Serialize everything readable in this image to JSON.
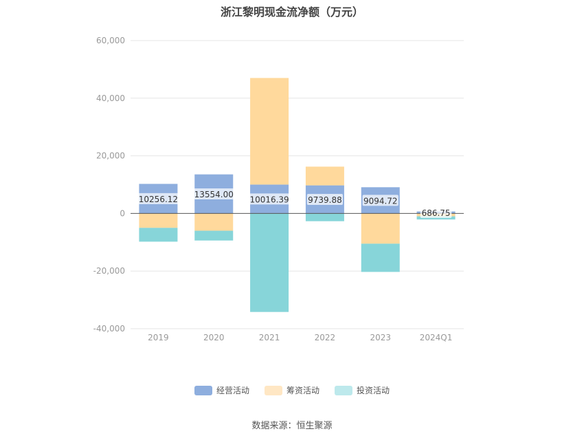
{
  "chart_data": {
    "type": "bar",
    "stacked": true,
    "title": "浙江黎明现金流净额（万元）",
    "categories": [
      "2019",
      "2020",
      "2021",
      "2022",
      "2023",
      "2024Q1"
    ],
    "ylim": [
      -40000,
      60000
    ],
    "yticks": [
      60000,
      40000,
      20000,
      0,
      -20000,
      -40000
    ],
    "ytick_labels": [
      "60,000",
      "40,000",
      "20,000",
      "0",
      "-20,000",
      "-40,000"
    ],
    "grid": true,
    "legend_position": "bottom",
    "series": [
      {
        "name": "经营活动",
        "color": "#8eaede",
        "values": [
          10256.12,
          13554.0,
          10016.39,
          9739.88,
          9094.72,
          686.75
        ],
        "data_labels": [
          "10256.12",
          "13554.00",
          "10016.39",
          "9739.88",
          "9094.72",
          "686.75"
        ]
      },
      {
        "name": "筹资活动",
        "color": "#ffd99c",
        "values": [
          -5000,
          -6000,
          37000,
          6500,
          -10500,
          -1000
        ]
      },
      {
        "name": "投资活动",
        "color": "#87d5d9",
        "values": [
          -4800,
          -3400,
          -34200,
          -2700,
          -9800,
          -1100
        ]
      }
    ]
  },
  "legend": {
    "items": [
      {
        "label": "经营活动",
        "color": "#8eaede"
      },
      {
        "label": "筹资活动",
        "color": "#ffe7c4"
      },
      {
        "label": "投资活动",
        "color": "#bde9ec"
      }
    ]
  },
  "source": "数据来源：恒生聚源"
}
